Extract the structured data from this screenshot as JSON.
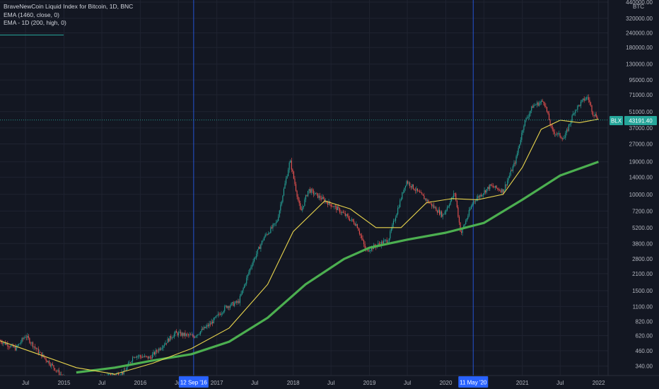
{
  "legend": {
    "title": "BraveNewCoin Liquid Index for Bitcoin, 1D, BNC",
    "indicator1": "EMA (1460, close, 0)",
    "indicator2": "EMA - 1D (200, high, 0)"
  },
  "colors": {
    "background": "#131722",
    "grid": "#1f2330",
    "up": "#26a69a",
    "down": "#ef5350",
    "ema1460": "#4caf50",
    "ema200": "#e8d44d",
    "vline": "#2962ff",
    "price_badge": "#26a69a"
  },
  "chart_data": {
    "type": "line",
    "yscale": "log",
    "currency": "BTC",
    "ylim": [
      320,
      440000
    ],
    "y_ticks": [
      "440000.00",
      "320000.00",
      "240000.00",
      "180000.00",
      "130000.00",
      "95000.00",
      "71000.00",
      "51000.00",
      "37000.00",
      "27000.00",
      "19000.00",
      "14000.00",
      "10000.00",
      "7200.00",
      "5200.00",
      "3800.00",
      "2800.00",
      "2100.00",
      "1500.00",
      "1100.00",
      "820.00",
      "620.00",
      "460.00",
      "340.00"
    ],
    "x_ticks": [
      "Jul",
      "2015",
      "Jul",
      "2016",
      "Jul",
      "2017",
      "Jul",
      "2018",
      "Jul",
      "2019",
      "Jul",
      "2020",
      "Jul",
      "2021",
      "Jul",
      "2022"
    ],
    "x_range": [
      "2014-03-01",
      "2022-02-15"
    ],
    "vertical_markers": [
      "12 Sep '16",
      "11 May '20"
    ],
    "last_price": {
      "symbol": "BLX",
      "value": "43191.40"
    },
    "series": [
      {
        "x": [
          "2014-03-01",
          "2014-05-15",
          "2014-07-01",
          "2014-09-01",
          "2014-11-01",
          "2015-01-15",
          "2015-04-01",
          "2015-08-01",
          "2015-10-15",
          "2015-12-01",
          "2016-02-15",
          "2016-06-15",
          "2016-09-12",
          "2016-12-01",
          "2017-02-15",
          "2017-04-15",
          "2017-06-15",
          "2017-08-15",
          "2017-10-15",
          "2017-12-17",
          "2018-02-06",
          "2018-03-15",
          "2018-05-05",
          "2018-08-01",
          "2018-11-01",
          "2018-12-15",
          "2019-04-01",
          "2019-06-26",
          "2019-09-01",
          "2019-12-17",
          "2020-02-13",
          "2020-03-13",
          "2020-05-11",
          "2020-08-01",
          "2020-10-01",
          "2020-11-30",
          "2021-01-08",
          "2021-02-20",
          "2021-04-14",
          "2021-05-23",
          "2021-07-20",
          "2021-09-07",
          "2021-10-20",
          "2021-11-10",
          "2021-12-05",
          "2022-01-20"
        ],
        "values": [
          560,
          480,
          620,
          450,
          350,
          250,
          240,
          280,
          300,
          420,
          400,
          650,
          610,
          780,
          1100,
          1200,
          2500,
          4300,
          5800,
          19500,
          7000,
          11000,
          9500,
          7500,
          5500,
          3300,
          4100,
          13000,
          10000,
          6600,
          10300,
          4600,
          8700,
          11800,
          10700,
          19500,
          40000,
          57000,
          63000,
          35000,
          30000,
          52000,
          64000,
          68000,
          49000,
          43191
        ]
      },
      {
        "name": "EMA (1460, close, 0)",
        "x": [
          "2015-03-01",
          "2015-09-01",
          "2016-03-01",
          "2016-09-01",
          "2017-03-01",
          "2017-09-01",
          "2018-03-01",
          "2018-09-01",
          "2019-01-01",
          "2019-07-01",
          "2020-01-01",
          "2020-07-01",
          "2021-01-01",
          "2021-07-01",
          "2021-12-31"
        ],
        "values": [
          300,
          330,
          380,
          430,
          550,
          880,
          1700,
          2800,
          3500,
          4100,
          4700,
          5700,
          9000,
          14500,
          19000
        ]
      },
      {
        "name": "EMA - 1D (200, high, 0)",
        "x": [
          "2014-03-01",
          "2014-09-01",
          "2015-03-01",
          "2015-09-01",
          "2016-03-01",
          "2016-09-01",
          "2017-03-01",
          "2017-09-01",
          "2018-01-01",
          "2018-06-01",
          "2018-10-01",
          "2019-02-01",
          "2019-06-01",
          "2019-10-01",
          "2020-02-01",
          "2020-06-01",
          "2020-10-01",
          "2021-01-01",
          "2021-04-01",
          "2021-07-01",
          "2021-10-01",
          "2021-12-31"
        ],
        "values": [
          560,
          430,
          330,
          290,
          360,
          480,
          720,
          1700,
          4800,
          8800,
          7500,
          5200,
          5200,
          8500,
          9200,
          9000,
          10000,
          17000,
          36000,
          43000,
          41000,
          44000
        ]
      }
    ]
  }
}
